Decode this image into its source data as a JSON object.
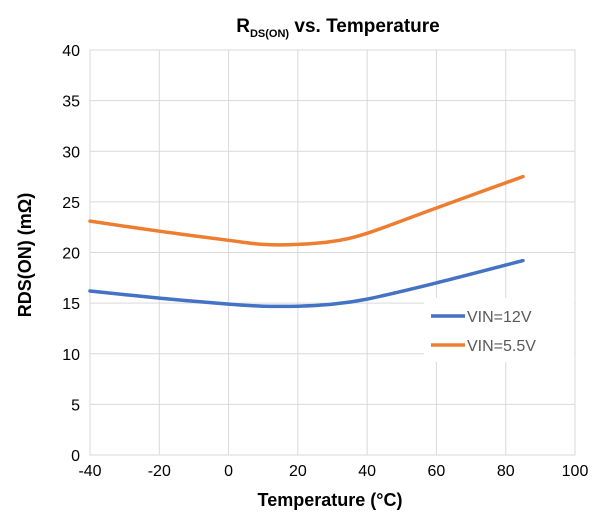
{
  "chart_data": {
    "type": "line",
    "title": {
      "prefix": "R",
      "subscript": "DS(ON)",
      "suffix": " vs. Temperature"
    },
    "xlabel": "Temperature (°C)",
    "ylabel": "RDS(ON) (mΩ)",
    "xlim": [
      -40,
      100
    ],
    "ylim": [
      0,
      40
    ],
    "x_ticks": [
      "-40",
      "-20",
      "0",
      "20",
      "40",
      "60",
      "80",
      "100"
    ],
    "y_ticks": [
      "0",
      "5",
      "10",
      "15",
      "20",
      "25",
      "30",
      "35",
      "40"
    ],
    "grid": true,
    "legend_position": "right",
    "series": [
      {
        "name": "VIN=12V",
        "color": "#4472C4",
        "x": [
          -40,
          -20,
          0,
          10,
          20,
          30,
          40,
          60,
          85
        ],
        "y": [
          16.2,
          15.5,
          14.9,
          14.7,
          14.7,
          14.9,
          15.4,
          17.0,
          19.2
        ]
      },
      {
        "name": "VIN=5.5V",
        "color": "#ED7D31",
        "x": [
          -40,
          -20,
          0,
          10,
          20,
          30,
          40,
          60,
          85
        ],
        "y": [
          23.1,
          22.1,
          21.2,
          20.8,
          20.8,
          21.1,
          21.9,
          24.4,
          27.5
        ]
      }
    ]
  }
}
